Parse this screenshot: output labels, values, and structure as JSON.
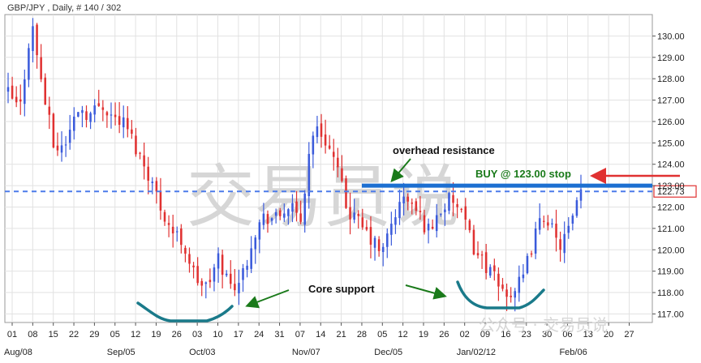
{
  "header": {
    "text": "GBP/JPY , Daily, # 140 / 302"
  },
  "watermark": {
    "main": "交易员说",
    "footer": "公众号 · 交易员说"
  },
  "colors": {
    "up": "#3b5bdb",
    "down": "#e03131",
    "resistance": "#1c6fd1",
    "dashed": "#4c7bea",
    "annotation": "#1a7a1a",
    "support": "#1a7a8a",
    "arrow_red": "#e03131",
    "price_box": "#e03131"
  },
  "annotations": {
    "resistance": "overhead resistance",
    "buy": "BUY @ 123.00 stop",
    "support": "Core support"
  },
  "current_price_label": "122.73",
  "chart_data": {
    "type": "candlestick",
    "title": "GBP/JPY , Daily, # 140 / 302",
    "ylim": [
      116.6,
      131.0
    ],
    "y_ticks": [
      117,
      118,
      119,
      120,
      121,
      122,
      123,
      124,
      125,
      126,
      127,
      128,
      129,
      130
    ],
    "y_tick_labels": [
      "117.00",
      "118.00",
      "119.00",
      "120.00",
      "121.00",
      "122.00",
      "123.00",
      "124.00",
      "125.00",
      "126.00",
      "127.00",
      "128.00",
      "129.00",
      "130.00"
    ],
    "x_tick_labels": [
      "01",
      "08",
      "15",
      "22",
      "29",
      "05",
      "12",
      "19",
      "26",
      "03",
      "10",
      "17",
      "24",
      "31",
      "07",
      "14",
      "21",
      "28",
      "05",
      "12",
      "19",
      "26",
      "02",
      "09",
      "16",
      "23",
      "30",
      "06",
      "13",
      "20",
      "27"
    ],
    "month_labels": [
      {
        "label": "Aug/08",
        "tick": 0
      },
      {
        "label": "Sep/05",
        "tick": 5
      },
      {
        "label": "Oct/03",
        "tick": 9
      },
      {
        "label": "Nov/07",
        "tick": 14
      },
      {
        "label": "Dec/05",
        "tick": 18
      },
      {
        "label": "Jan/02/12",
        "tick": 22
      },
      {
        "label": "Feb/06",
        "tick": 27
      }
    ],
    "resistance_level": 123.0,
    "current_price": 122.73,
    "grid": true,
    "path": [
      [
        0,
        127.3
      ],
      [
        1,
        126.5
      ],
      [
        2,
        130.7
      ],
      [
        3,
        127.4
      ],
      [
        4,
        124.6
      ],
      [
        5,
        125.1
      ],
      [
        6,
        126.7
      ],
      [
        7,
        126.3
      ],
      [
        8,
        126.9
      ],
      [
        9,
        126.2
      ],
      [
        10,
        125.9
      ],
      [
        11,
        124.7
      ],
      [
        12,
        123.6
      ],
      [
        13,
        122.1
      ],
      [
        14,
        120.9
      ],
      [
        15,
        120.3
      ],
      [
        16,
        118.7
      ],
      [
        17,
        118.2
      ],
      [
        18,
        119.6
      ],
      [
        19,
        118.3
      ],
      [
        20,
        118.7
      ],
      [
        21,
        120.8
      ],
      [
        22,
        121.6
      ],
      [
        23,
        121.4
      ],
      [
        24,
        122.1
      ],
      [
        25,
        121.2
      ],
      [
        26,
        125.6
      ],
      [
        27,
        125.4
      ],
      [
        28,
        124.0
      ],
      [
        29,
        121.9
      ],
      [
        30,
        121.2
      ],
      [
        31,
        120.5
      ],
      [
        32,
        119.8
      ],
      [
        33,
        121.6
      ],
      [
        34,
        122.5
      ],
      [
        35,
        121.7
      ],
      [
        36,
        120.9
      ],
      [
        37,
        121.9
      ],
      [
        38,
        122.4
      ],
      [
        39,
        121.3
      ],
      [
        40,
        119.9
      ],
      [
        41,
        119.2
      ],
      [
        42,
        118.2
      ],
      [
        43,
        118.0
      ],
      [
        44,
        118.5
      ],
      [
        45,
        120.6
      ],
      [
        46,
        121.8
      ],
      [
        47,
        120.1
      ],
      [
        48,
        120.9
      ],
      [
        49,
        122.6
      ]
    ]
  }
}
